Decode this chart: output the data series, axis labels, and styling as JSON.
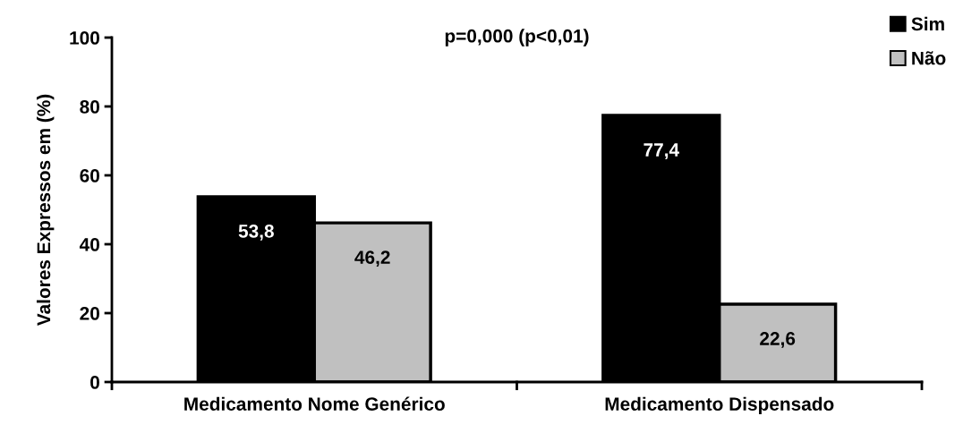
{
  "chart_data": {
    "type": "bar",
    "ylabel": "Valores Expressos em (%)",
    "categories": [
      "Medicamento Nome Genérico",
      "Medicamento Dispensado"
    ],
    "series": [
      {
        "name": "Sim",
        "color": "#000000",
        "values": [
          53.8,
          77.4
        ],
        "value_labels": [
          "53,8",
          "77,4"
        ]
      },
      {
        "name": "Não",
        "color": "#c0c0c0",
        "values": [
          46.2,
          22.6
        ],
        "value_labels": [
          "46,2",
          "22,6"
        ]
      }
    ],
    "ylim": [
      0,
      100
    ],
    "yticks": [
      0,
      20,
      40,
      60,
      80,
      100
    ],
    "grid": false,
    "legend": "top right",
    "annotations": [
      "p=0,000 (p<0,01)"
    ]
  }
}
